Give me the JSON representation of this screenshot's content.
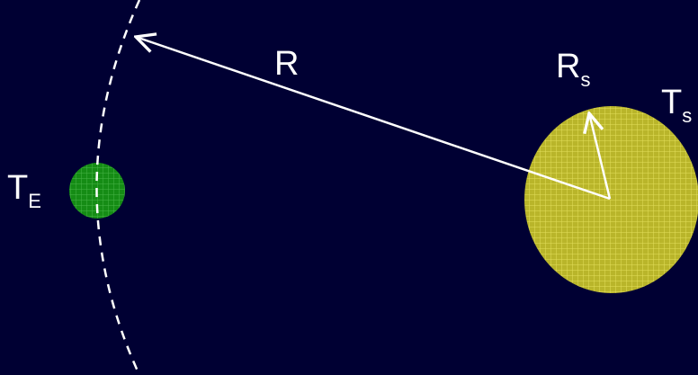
{
  "diagram": {
    "colors": {
      "background": "#000033",
      "earth": "#1a8a1a",
      "sun": "#c8c830",
      "line": "#ffffff"
    },
    "labels": {
      "distance": "R",
      "sun_radius_main": "R",
      "sun_radius_sub": "s",
      "sun_temp_main": "T",
      "sun_temp_sub": "s",
      "earth_temp_main": "T",
      "earth_temp_sub": "E"
    }
  }
}
